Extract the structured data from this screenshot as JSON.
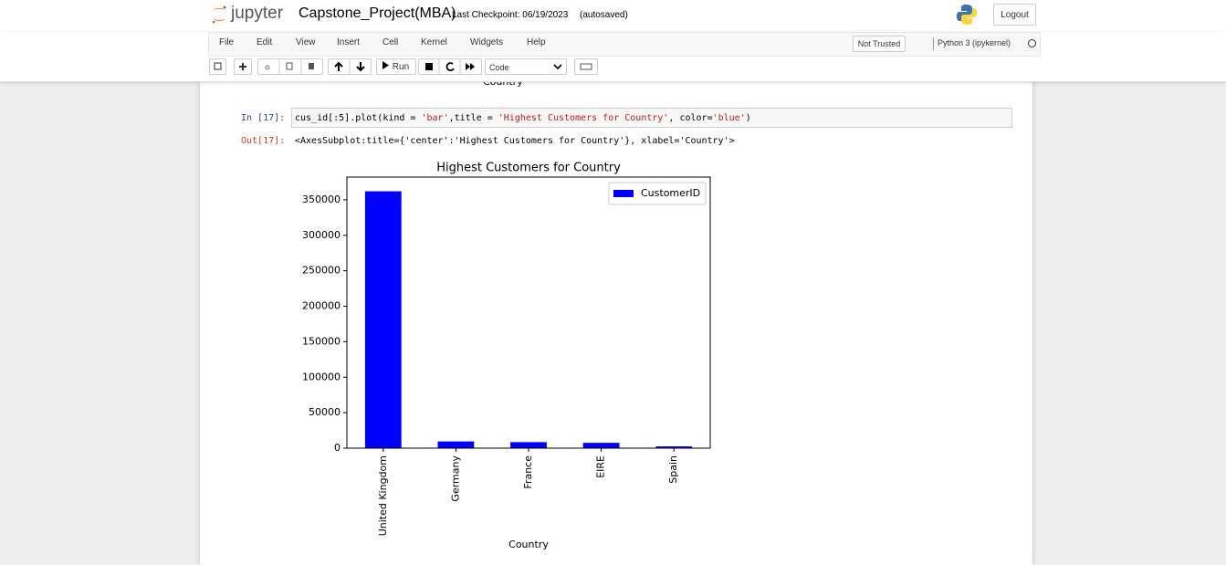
{
  "header": {
    "logo": "jupyter",
    "notebook_name": "Capstone_Project(MBA)",
    "checkpoint": "Last Checkpoint: 06/19/2023",
    "autosave": "(autosaved)",
    "logout": "Logout"
  },
  "menu": {
    "items": [
      "File",
      "Edit",
      "View",
      "Insert",
      "Cell",
      "Kernel",
      "Widgets",
      "Help"
    ],
    "trust": "Not Trusted",
    "kernel": "Python 3 (ipykernel)"
  },
  "toolbar": {
    "run": "Run",
    "cell_type": "Code"
  },
  "previous_output": {
    "xlabel_fragment": "Country"
  },
  "cell": {
    "in_prompt": "In [17]:",
    "code": [
      "cus_id[:5].plot(kind = ",
      "'bar'",
      ",title = ",
      "'Highest Customers for Country'",
      ", color=",
      "'blue'",
      ")"
    ],
    "out_prompt": "Out[17]:",
    "output_text": "<AxesSubplot:title={'center':'Highest Customers for Country'}, xlabel='Country'>"
  },
  "chart_data": {
    "type": "bar",
    "title": "Highest Customers for Country",
    "x_label": "Country",
    "categories": [
      "United Kingdom",
      "Germany",
      "France",
      "EIRE",
      "Spain"
    ],
    "series": [
      {
        "name": "CustomerID",
        "color": "#0000ff",
        "values": [
          362000,
          9500,
          8500,
          7500,
          2500
        ]
      }
    ],
    "ylim": [
      0,
      382000
    ],
    "yticks": [
      0,
      50000,
      100000,
      150000,
      200000,
      250000,
      300000,
      350000
    ],
    "legend": "upper right",
    "grid": false
  }
}
